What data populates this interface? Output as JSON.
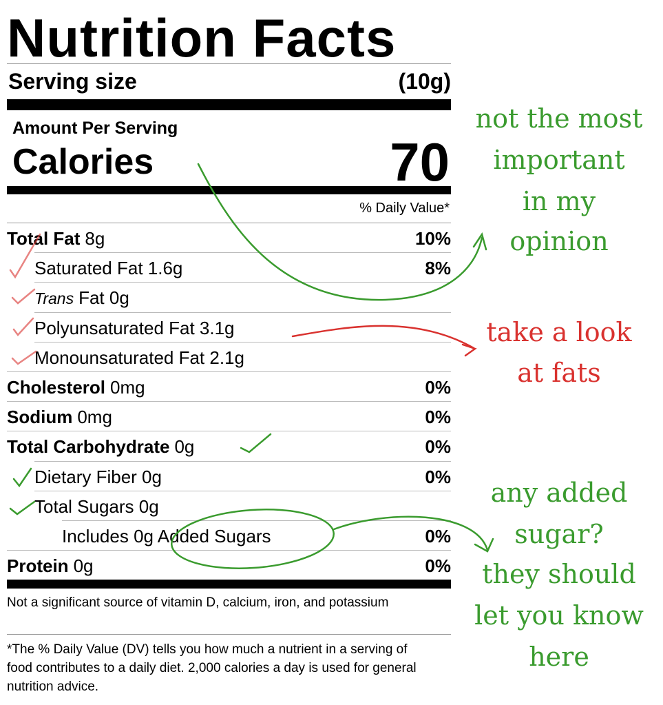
{
  "label": {
    "title": "Nutrition Facts",
    "serving_size": {
      "label": "Serving size",
      "amount": "(10g)"
    },
    "amount_per_serving": "Amount Per Serving",
    "calories": {
      "label": "Calories",
      "amount": "70"
    },
    "daily_value_header": "% Daily Value*",
    "nutrients": [
      {
        "name": "Total Fat",
        "amount": "8g",
        "dv": "10%",
        "sub": [
          {
            "text": "Saturated Fat 1.6g",
            "dv": "8%"
          },
          {
            "italic": "Trans",
            "text": "Fat 0g"
          },
          {
            "text": "Polyunsaturated Fat 3.1g"
          },
          {
            "text": "Monounsaturated Fat 2.1g"
          }
        ]
      },
      {
        "name": "Cholesterol",
        "amount": "0mg",
        "dv": "0%"
      },
      {
        "name": "Sodium",
        "amount": "0mg",
        "dv": "0%"
      },
      {
        "name": "Total Carbohydrate",
        "amount": "0g",
        "dv": "0%",
        "sub": [
          {
            "text": "Dietary Fiber 0g",
            "dv": "0%"
          },
          {
            "text": "Total Sugars 0g",
            "sub": [
              {
                "text": "Includes 0g Added Sugars",
                "dv": "0%"
              }
            ]
          }
        ]
      },
      {
        "name": "Protein",
        "amount": "0g",
        "dv": "0%"
      }
    ],
    "note": "Not a significant source of vitamin D, calcium, iron, and potassium",
    "footnote": "*The % Daily Value (DV) tells you how much a nutrient in a serving of food contributes to a daily diet. 2,000 calories a day is used for general nutrition advice."
  },
  "annotations": [
    {
      "color": "#3a9b2e",
      "lines": [
        "not the most",
        "important",
        "in my",
        "opinion"
      ]
    },
    {
      "color": "#d9322f",
      "lines": [
        "take a look",
        "at fats"
      ]
    },
    {
      "color": "#3a9b2e",
      "lines": [
        "any added",
        "sugar?",
        "they should",
        "let you know",
        "here"
      ]
    }
  ]
}
